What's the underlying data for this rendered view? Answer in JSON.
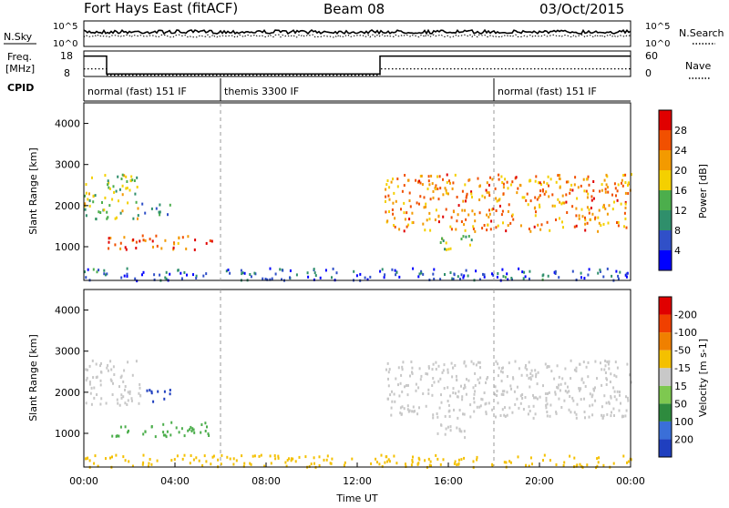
{
  "header": {
    "station": "Fort Hays East (fitACF)",
    "beam": "Beam 08",
    "date": "03/Oct/2015"
  },
  "noise_panel": {
    "left_label": "N.Sky",
    "left_ticks": [
      "10^5",
      "10^0"
    ],
    "right_ticks": [
      "10^5",
      "10^0"
    ],
    "right_label": "N.Search"
  },
  "freq_panel": {
    "left_label_line1": "Freq.",
    "left_label_line2": "[MHz]",
    "left_ticks": [
      "18",
      "8"
    ],
    "right_ticks": [
      "60",
      "0"
    ],
    "right_label": "Nave",
    "freq_steps": [
      {
        "start_hour": 0,
        "end_hour": 1,
        "level": 0.8
      },
      {
        "start_hour": 1,
        "end_hour": 13,
        "level": 0.1
      },
      {
        "start_hour": 13,
        "end_hour": 24,
        "level": 0.8
      }
    ],
    "nave_steps": [
      {
        "start_hour": 0,
        "end_hour": 1,
        "level": 0.3
      },
      {
        "start_hour": 1,
        "end_hour": 13,
        "level": 0.05
      },
      {
        "start_hour": 13,
        "end_hour": 24,
        "level": 0.3
      }
    ]
  },
  "cpid_panel": {
    "label": "CPID",
    "segments": [
      {
        "start_hour": 0,
        "end_hour": 6,
        "text": "normal (fast) 151 IF"
      },
      {
        "start_hour": 6,
        "end_hour": 18,
        "text": "themis 3300 IF"
      },
      {
        "start_hour": 18,
        "end_hour": 24,
        "text": "normal (fast) 151 IF"
      }
    ]
  },
  "chart_data": [
    {
      "type": "heatmap",
      "variable": "power",
      "ylabel": "Slant Range [km]",
      "ylim": [
        180,
        4500
      ],
      "yticks": [
        "1000",
        "2000",
        "3000",
        "4000"
      ],
      "colorbar_label": "Power [dB]",
      "colorbar_ticks": [
        "4",
        "8",
        "12",
        "16",
        "20",
        "24",
        "28"
      ],
      "colorbar_colors": [
        "#0000ff",
        "#3050c8",
        "#2f8f6b",
        "#4cae4c",
        "#f4d000",
        "#f39a00",
        "#f15000",
        "#e00000"
      ],
      "scatter_regions": [
        {
          "start_hour": 1.0,
          "end_hour": 5.6,
          "range_min": 950,
          "range_max": 1300,
          "intensity": 0.85
        },
        {
          "start_hour": 0.0,
          "end_hour": 2.5,
          "range_min": 1700,
          "range_max": 2800,
          "intensity": 0.5
        },
        {
          "start_hour": 2.5,
          "end_hour": 3.8,
          "range_min": 1800,
          "range_max": 2100,
          "intensity": 0.3
        },
        {
          "start_hour": 13.2,
          "end_hour": 24.0,
          "range_min": 1400,
          "range_max": 2800,
          "intensity": 0.75
        },
        {
          "start_hour": 15.5,
          "end_hour": 17.0,
          "range_min": 900,
          "range_max": 1300,
          "intensity": 0.5
        },
        {
          "start_hour": 0.0,
          "end_hour": 24.0,
          "range_min": 200,
          "range_max": 500,
          "intensity": 0.15
        }
      ]
    },
    {
      "type": "heatmap",
      "variable": "velocity",
      "ylabel": "Slant Range [km]",
      "ylim": [
        180,
        4500
      ],
      "yticks": [
        "1000",
        "2000",
        "3000",
        "4000"
      ],
      "colorbar_label": "Velocity [m s-1]",
      "colorbar_ticks": [
        "200",
        "100",
        "50",
        "15",
        "-15",
        "-50",
        "-100",
        "-200"
      ],
      "colorbar_colors": [
        "#1f3fbf",
        "#3a6fd8",
        "#2e8b3e",
        "#7ec850",
        "#c8c8c8",
        "#f4c000",
        "#f08000",
        "#f04000",
        "#e00000"
      ],
      "scatter_regions": [
        {
          "start_hour": 1.0,
          "end_hour": 5.6,
          "range_min": 950,
          "range_max": 1300,
          "color": "#4cae4c"
        },
        {
          "start_hour": 0.0,
          "end_hour": 2.5,
          "range_min": 1700,
          "range_max": 2800,
          "color": "#c8c8c8"
        },
        {
          "start_hour": 2.5,
          "end_hour": 3.8,
          "range_min": 1800,
          "range_max": 2100,
          "color": "#1f3fbf"
        },
        {
          "start_hour": 13.2,
          "end_hour": 24.0,
          "range_min": 1400,
          "range_max": 2800,
          "color": "#c8c8c8"
        },
        {
          "start_hour": 15.5,
          "end_hour": 17.0,
          "range_min": 900,
          "range_max": 1300,
          "color": "#c8c8c8"
        },
        {
          "start_hour": 0.0,
          "end_hour": 24.0,
          "range_min": 200,
          "range_max": 500,
          "color": "#f4c000"
        }
      ]
    }
  ],
  "x_axis": {
    "label": "Time UT",
    "xlim": [
      0,
      24
    ],
    "ticks": [
      {
        "hour": 0,
        "label": "00:00"
      },
      {
        "hour": 4,
        "label": "04:00"
      },
      {
        "hour": 8,
        "label": "08:00"
      },
      {
        "hour": 12,
        "label": "12:00"
      },
      {
        "hour": 16,
        "label": "16:00"
      },
      {
        "hour": 20,
        "label": "20:00"
      },
      {
        "hour": 24,
        "label": "00:00"
      }
    ],
    "dashed_hours": [
      6,
      18
    ]
  }
}
